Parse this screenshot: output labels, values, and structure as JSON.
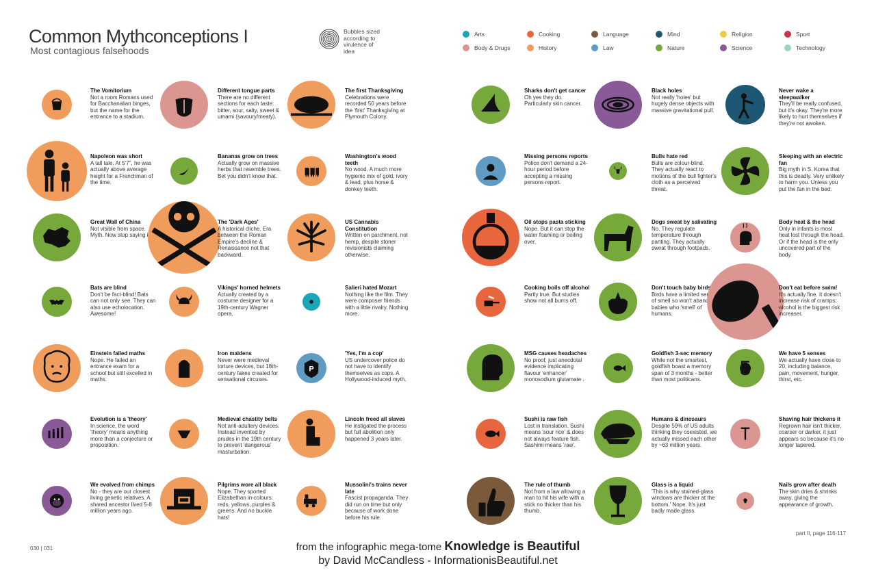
{
  "header": {
    "title": "Common Mythconceptions I",
    "subtitle": "Most contagious falsehoods",
    "bubble_note": "Bubbles sized according to virulence of idea"
  },
  "colors": {
    "arts": "#1aa6b7",
    "cooking": "#e8663d",
    "language": "#7a5a3a",
    "mind": "#1c5873",
    "religion": "#efcb3e",
    "sport": "#c9324a",
    "body": "#dc9691",
    "history": "#f09c5c",
    "law": "#5f9bc2",
    "nature": "#76a83b",
    "science": "#8a5a98",
    "technology": "#9ed4ba"
  },
  "legend": [
    {
      "label": "Arts",
      "color": "#1aa6b7"
    },
    {
      "label": "Cooking",
      "color": "#e8663d"
    },
    {
      "label": "Language",
      "color": "#7a5a3a"
    },
    {
      "label": "Mind",
      "color": "#1c5873"
    },
    {
      "label": "Religion",
      "color": "#efcb3e"
    },
    {
      "label": "Sport",
      "color": "#c9324a"
    },
    {
      "label": "Body & Drugs",
      "color": "#dc9691"
    },
    {
      "label": "History",
      "color": "#f09c5c"
    },
    {
      "label": "Law",
      "color": "#5f9bc2"
    },
    {
      "label": "Nature",
      "color": "#76a83b"
    },
    {
      "label": "Science",
      "color": "#8a5a98"
    },
    {
      "label": "Technology",
      "color": "#9ed4ba"
    }
  ],
  "myths": [
    {
      "title": "The Vomitorium",
      "body": "Not a room Romans used for Bacchanalian binges, but the name for the entrance to a stadium.",
      "color": "#f09c5c",
      "icon": "bucket-icon"
    },
    {
      "title": "Napoleon was short",
      "body": "A tall tale. At 5'7\", he was actually above average height for a Frenchman of the time.",
      "color": "#f09c5c",
      "icon": "people-height-icon"
    },
    {
      "title": "Great Wall of China",
      "body": "Not visible from space. Myth. Now stop saying it!",
      "color": "#76a83b",
      "icon": "china-map-icon"
    },
    {
      "title": "Bats are blind",
      "body": "Don't be fact-blind! Bats can not only see. They can also use echolocation. Awesome!",
      "color": "#76a83b",
      "icon": "bat-icon"
    },
    {
      "title": "Einstein failed maths",
      "body": "Nope. He failed an entrance exam for a school but still excelled in maths.",
      "color": "#f09c5c",
      "icon": "einstein-icon"
    },
    {
      "title": "Evolution is a 'theory'",
      "body": "In science, the word 'theory' means anything more than a conjecture or proposition.",
      "color": "#8a5a98",
      "icon": "evolution-icon"
    },
    {
      "title": "We evolved from chimps",
      "body": "No - they are our closest living genetic relatives. A shared ancestor lived 5-8 million years ago.",
      "color": "#8a5a98",
      "icon": "chimp-icon"
    },
    {
      "title": "Different tongue parts",
      "body": "There are no different sections for each taste: bitter, sour, salty, sweet & umami (savoury/meaty).",
      "color": "#dc9691",
      "icon": "tongue-icon"
    },
    {
      "title": "Bananas grow on trees",
      "body": "Actually grow on massive herbs that resemble trees. Bet you didn't know that.",
      "color": "#76a83b",
      "icon": "banana-icon"
    },
    {
      "title": "The 'Dark Ages'",
      "body": "A historical cliche. Era between the Roman Empire's decline & Renaissance not that backward.",
      "color": "#f09c5c",
      "icon": "skull-swords-icon"
    },
    {
      "title": "Vikings' horned helmets",
      "body": "Actually created by a costume designer for a 19th-century Wagner opera.",
      "color": "#f09c5c",
      "icon": "horned-helmet-icon"
    },
    {
      "title": "Iron maidens",
      "body": "Never were medieval torture devices, but 18th-century fakes created for sensational circuses.",
      "color": "#f09c5c",
      "icon": "iron-maiden-icon"
    },
    {
      "title": "Medieval chastity belts",
      "body": "Not anti-adultery devices. Instead invented by prudes in the 19th century to prevent 'dangerous' masturbation.",
      "color": "#f09c5c",
      "icon": "chastity-belt-icon"
    },
    {
      "title": "Pilgrims wore all black",
      "body": "Nope. They sported Elizabethan in-colours: reds, yellows, purples & greens. And no buckle hats!",
      "color": "#f09c5c",
      "icon": "pilgrim-hat-icon"
    },
    {
      "title": "The first Thanksgiving",
      "body": "Celebrations were recorded 50 years before the 'first' Thanksgiving at Plymouth Colony.",
      "color": "#f09c5c",
      "icon": "turkey-icon"
    },
    {
      "title": "Washington's wood teeth",
      "body": "No wood. A much more hygienic mix of gold, ivory & lead, plus horse & donkey teeth.",
      "color": "#f09c5c",
      "icon": "teeth-icon"
    },
    {
      "title": "US Cannabis Constitution",
      "body": "Written on parchment, not hemp, despite stoner revisionists claiming otherwise.",
      "color": "#f09c5c",
      "icon": "cannabis-leaf-icon"
    },
    {
      "title": "Salieri hated Mozart",
      "body": "Nothing like the film. They were composer friends with a little rivalry. Nothing more.",
      "color": "#1aa6b7",
      "icon": "mozart-icon"
    },
    {
      "title": "'Yes, I'm a cop'",
      "body": "US undercover police do not have to identify themselves as cops. A Hollywood-induced myth.",
      "color": "#5f9bc2",
      "icon": "police-badge-icon"
    },
    {
      "title": "Lincoln freed all slaves",
      "body": "He instigated the process but full abolition only happened 3 years later.",
      "color": "#f09c5c",
      "icon": "kneeling-figure-icon"
    },
    {
      "title": "Mussolini's trains never late",
      "body": "Fascist propaganda. They did run on time but only because of work done before his rule.",
      "color": "#f09c5c",
      "icon": "train-icon"
    },
    {
      "title": "Sharks don't get cancer",
      "body": "Oh yes they do. Particularly skin cancer.",
      "color": "#76a83b",
      "icon": "shark-fin-icon"
    },
    {
      "title": "Missing persons reports",
      "body": "Police don't demand a 24-hour period before accepting a missing persons report.",
      "color": "#5f9bc2",
      "icon": "missing-person-icon"
    },
    {
      "title": "Oil stops pasta sticking",
      "body": "Nope. But it can stop the water foaming or boiling over.",
      "color": "#e8663d",
      "icon": "oil-flask-icon"
    },
    {
      "title": "Cooking boils off alcohol",
      "body": "Partly true. But studies show not all burns off.",
      "color": "#e8663d",
      "icon": "pan-icon"
    },
    {
      "title": "MSG causes headaches",
      "body": "No proof, just anecdotal evidence implicating flavour 'enhancer' monosodium glutamate .",
      "color": "#76a83b",
      "icon": "headache-icon"
    },
    {
      "title": "Sushi is raw fish",
      "body": "Lost in translation. Sushi means 'sour rice' & does not always feature fish. Sashimi means 'raw'.",
      "color": "#e8663d",
      "icon": "fish-icon"
    },
    {
      "title": "The rule of thumb",
      "body": "Not from a law allowing a man to hit his wife with a stick no thicker than his thumb.",
      "color": "#7a5a3a",
      "icon": "thumb-icon"
    },
    {
      "title": "Black holes",
      "body": "Not really 'holes' but hugely dense objects with massive gravitational pull.",
      "color": "#8a5a98",
      "icon": "black-hole-icon"
    },
    {
      "title": "Bulls hate red",
      "body": "Bulls are colour-blind. They actually react to motions of the bull fighter's cloth as a perceived threat.",
      "color": "#76a83b",
      "icon": "bull-icon"
    },
    {
      "title": "Dogs sweat by salivating",
      "body": "No. They regulate temperature through panting. They actually sweat through footpads.",
      "color": "#76a83b",
      "icon": "dog-icon"
    },
    {
      "title": "Don't touch baby birds!",
      "body": "Birds have a limited sense of smell so won't abandon babies who 'smell' of humans.",
      "color": "#76a83b",
      "icon": "baby-bird-icon"
    },
    {
      "title": "Goldfish 3-sec memory",
      "body": "While not the smartest, goldfish boast a memory span of 3 months - better than most politicans.",
      "color": "#76a83b",
      "icon": "goldfish-icon"
    },
    {
      "title": "Humans & dinosaurs",
      "body": "Despite 59% of US adults thinking they coexisted, we actually missed each other by ~63 million years.",
      "color": "#76a83b",
      "icon": "dinosaur-skull-icon"
    },
    {
      "title": "Glass is a liquid",
      "body": "'This is why stained-glass windows are thicker at the bottom.' Nope. It's just badly made glass.",
      "color": "#76a83b",
      "icon": "wine-glass-icon"
    },
    {
      "title": "Never wake a sleepwalker",
      "body": "They'll be really confused, but it's okay. They're more likely to hurt themselves if they're not awoken.",
      "color": "#1c5873",
      "icon": "sleepwalker-icon"
    },
    {
      "title": "Sleeping with an electric fan",
      "body": "Big myth in S. Korea that this is deadly. Very unlikely to harm you. Unless you put the fan in the bed.",
      "color": "#76a83b",
      "icon": "fan-icon"
    },
    {
      "title": "Body heat & the head",
      "body": "Only in infants is most heat lost through the head. Or if the head is the only uncovered part of the body.",
      "color": "#dc9691",
      "icon": "head-heat-icon"
    },
    {
      "title": "Don't eat before swim!",
      "body": "It's actually fine. It doesn't increase risk of cramps; alcohol is the biggest risk increaser.",
      "color": "#dc9691",
      "icon": "drumstick-icon"
    },
    {
      "title": "We have 5 senses",
      "body": "We actually have close to 20, including balance, pain, movement, hunger, thirst, etc.",
      "color": "#76a83b",
      "icon": "number-five-icon",
      "glyph": "5"
    },
    {
      "title": "Shaving hair thickens it",
      "body": "Regrown hair isn't thicker, coarser or darker, it just appears so because it's no longer tapered.",
      "color": "#dc9691",
      "icon": "razor-icon"
    },
    {
      "title": "Nails grow after death",
      "body": "The skin dries & shrinks away, giving the appearance of growth.",
      "color": "#dc9691",
      "icon": "skull-icon"
    }
  ],
  "footer": {
    "page_numbers": "030 | 031",
    "page_ref": "part II, page 116-117",
    "line1_prefix": "from the infographic mega-tome",
    "book": "Knowledge is Beautiful",
    "line2": "by David McCandless - InformationisBeautiful.net"
  }
}
